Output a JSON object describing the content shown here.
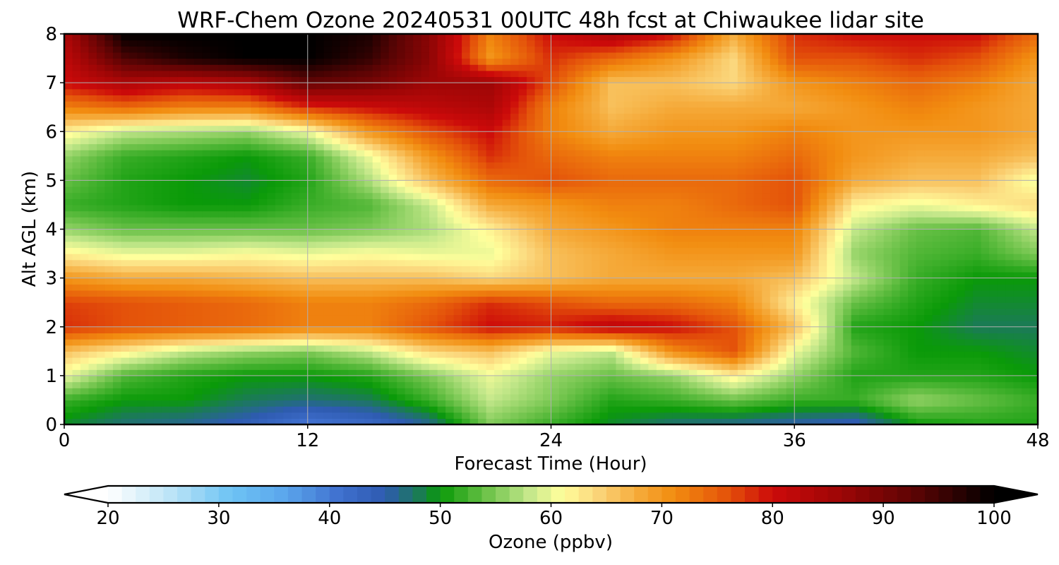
{
  "chart_data": {
    "type": "heatmap",
    "title": "WRF-Chem Ozone  20240531 00UTC 48h fcst at Chiwaukee lidar site",
    "xlabel": "Forecast Time (Hour)",
    "ylabel": "Alt AGL (km)",
    "xlim": [
      0,
      48
    ],
    "ylim": [
      0,
      8
    ],
    "xticks": [
      0,
      12,
      24,
      36,
      48
    ],
    "yticks": [
      0,
      1,
      2,
      3,
      4,
      5,
      6,
      7,
      8
    ],
    "grid": true,
    "x": [
      0,
      3,
      6,
      9,
      12,
      15,
      18,
      21,
      24,
      27,
      30,
      33,
      36,
      39,
      42,
      45,
      48
    ],
    "y": [
      0,
      0.5,
      1,
      1.5,
      2,
      2.5,
      3,
      3.5,
      4,
      4.5,
      5,
      5.5,
      6,
      6.5,
      7,
      7.5,
      8
    ],
    "z": [
      [
        49,
        47,
        46,
        44,
        40,
        42,
        46,
        55,
        52,
        49,
        47,
        46,
        45,
        44,
        50,
        51,
        51
      ],
      [
        52,
        50,
        50,
        48,
        47,
        48,
        52,
        58,
        55,
        51,
        52,
        54,
        52,
        52,
        56,
        54,
        52
      ],
      [
        60,
        53,
        51,
        50,
        50,
        51,
        55,
        60,
        56,
        54,
        56,
        62,
        56,
        51,
        51,
        51,
        50
      ],
      [
        66,
        62,
        58,
        56,
        55,
        58,
        64,
        66,
        60,
        58,
        71,
        76,
        60,
        53,
        50,
        50,
        49
      ],
      [
        78,
        76,
        75,
        74,
        72,
        72,
        76,
        80,
        79,
        82,
        80,
        76,
        66,
        51,
        50,
        48,
        48
      ],
      [
        77,
        76,
        75,
        74,
        72,
        72,
        74,
        78,
        76,
        74,
        74,
        72,
        62,
        54,
        51,
        49,
        49
      ],
      [
        70,
        68,
        68,
        67,
        66,
        66,
        66,
        64,
        66,
        68,
        68,
        68,
        66,
        58,
        52,
        50,
        50
      ],
      [
        62,
        60,
        60,
        61,
        60,
        61,
        60,
        60,
        66,
        68,
        70,
        70,
        70,
        56,
        53,
        52,
        55
      ],
      [
        56,
        54,
        54,
        54,
        54,
        55,
        57,
        62,
        68,
        70,
        72,
        72,
        72,
        58,
        54,
        53,
        58
      ],
      [
        52,
        51,
        50,
        50,
        52,
        53,
        58,
        68,
        70,
        72,
        72,
        74,
        76,
        62,
        60,
        62,
        64
      ],
      [
        54,
        51,
        50,
        49,
        51,
        57,
        66,
        74,
        76,
        74,
        74,
        74,
        76,
        68,
        66,
        66,
        60
      ],
      [
        56,
        52,
        51,
        50,
        52,
        60,
        70,
        78,
        74,
        72,
        72,
        72,
        74,
        70,
        68,
        68,
        66
      ],
      [
        62,
        58,
        57,
        56,
        60,
        70,
        76,
        80,
        72,
        68,
        70,
        70,
        72,
        70,
        70,
        70,
        68
      ],
      [
        72,
        74,
        72,
        72,
        78,
        80,
        82,
        84,
        72,
        66,
        68,
        68,
        68,
        70,
        72,
        70,
        68
      ],
      [
        80,
        84,
        82,
        84,
        92,
        90,
        86,
        86,
        76,
        66,
        66,
        64,
        70,
        72,
        74,
        72,
        68
      ],
      [
        82,
        94,
        98,
        100,
        100,
        96,
        88,
        70,
        78,
        74,
        70,
        64,
        76,
        76,
        78,
        76,
        70
      ],
      [
        84,
        100,
        100,
        100,
        100,
        98,
        88,
        72,
        80,
        84,
        80,
        68,
        78,
        80,
        80,
        80,
        74
      ]
    ],
    "colorbar": {
      "label": "Ozone  (ppbv)",
      "min": 20,
      "max": 100,
      "ticks": [
        20,
        30,
        40,
        50,
        60,
        70,
        80,
        90,
        100
      ],
      "extend": "both",
      "stops": [
        {
          "v": 20,
          "c": "#ffffff"
        },
        {
          "v": 26,
          "c": "#b8e2f6"
        },
        {
          "v": 31,
          "c": "#6ec4f4"
        },
        {
          "v": 36,
          "c": "#5ba6ec"
        },
        {
          "v": 41,
          "c": "#3f6fce"
        },
        {
          "v": 45,
          "c": "#2e5bb0"
        },
        {
          "v": 48,
          "c": "#1b7a58"
        },
        {
          "v": 50,
          "c": "#0a9a08"
        },
        {
          "v": 54,
          "c": "#68c046"
        },
        {
          "v": 58,
          "c": "#c3e78a"
        },
        {
          "v": 61,
          "c": "#ffff9c"
        },
        {
          "v": 64,
          "c": "#fbd77d"
        },
        {
          "v": 68,
          "c": "#f5a938"
        },
        {
          "v": 71,
          "c": "#f28d10"
        },
        {
          "v": 76,
          "c": "#e4520a"
        },
        {
          "v": 80,
          "c": "#cc0a0a"
        },
        {
          "v": 86,
          "c": "#9e0606"
        },
        {
          "v": 93,
          "c": "#5a0404"
        },
        {
          "v": 100,
          "c": "#000000"
        }
      ]
    }
  }
}
